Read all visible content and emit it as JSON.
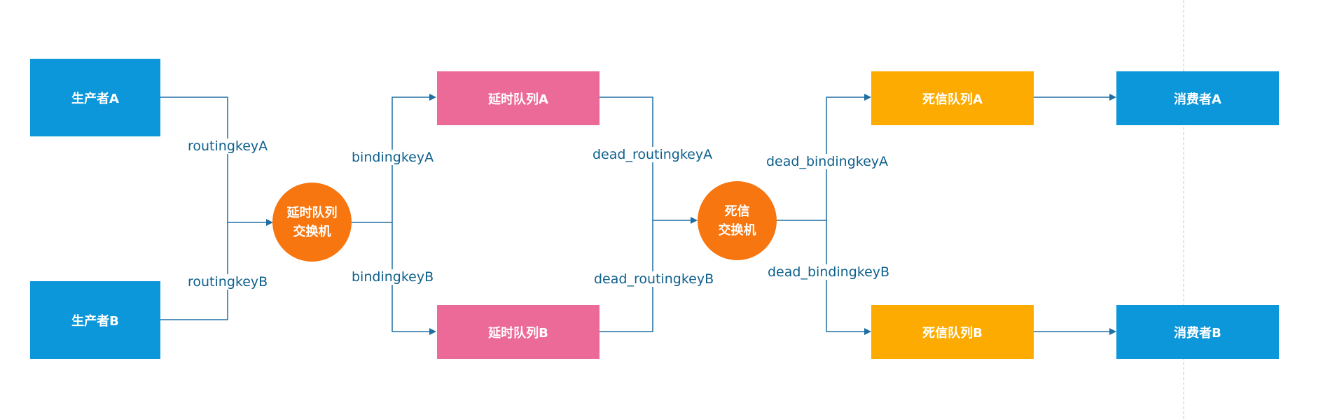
{
  "colors": {
    "producer": "#0b97d9",
    "consumer": "#0b97d9",
    "delay_queue": "#ec6a97",
    "dead_queue": "#fdab00",
    "exchange": "#f7760f",
    "edge": "#1f6fa3",
    "edge_label": "#0e5f8c"
  },
  "producers": {
    "a": "生产者A",
    "b": "生产者B"
  },
  "delay_exchange": {
    "line1": "延时队列",
    "line2": "交换机"
  },
  "delay_queues": {
    "a": "延时队列A",
    "b": "延时队列B"
  },
  "dead_exchange": {
    "line1": "死信",
    "line2": "交换机"
  },
  "dead_queues": {
    "a": "死信队列A",
    "b": "死信队列B"
  },
  "consumers": {
    "a": "消费者A",
    "b": "消费者B"
  },
  "edge_labels": {
    "routing_a": "routingkeyA",
    "routing_b": "routingkeyB",
    "binding_a": "bindingkeyA",
    "binding_b": "bindingkeyB",
    "dead_routing_a": "dead_routingkeyA",
    "dead_routing_b": "dead_routingkeyB",
    "dead_binding_a": "dead_bindingkeyA",
    "dead_binding_b": "dead_bindingkeyB"
  }
}
